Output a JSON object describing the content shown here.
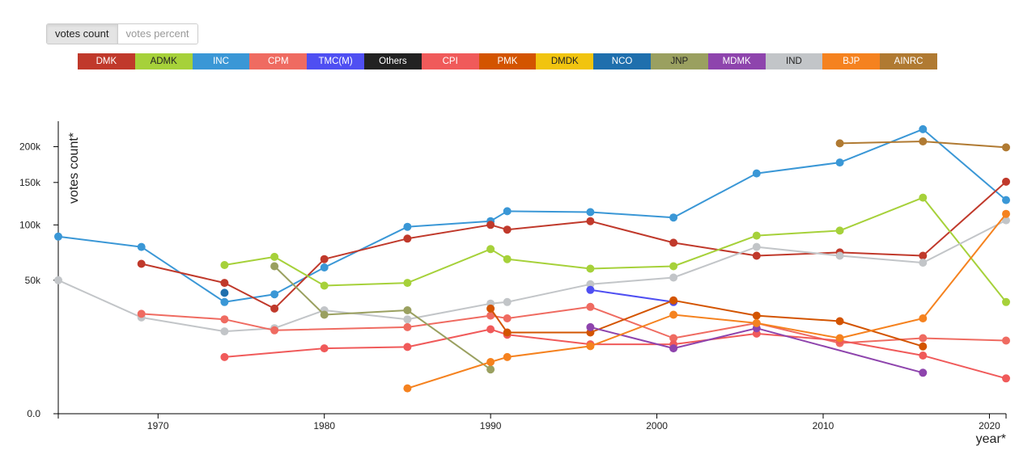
{
  "toggle": {
    "count_label": "votes count",
    "percent_label": "votes percent"
  },
  "legend": [
    {
      "name": "DMK",
      "color": "#c0392b"
    },
    {
      "name": "ADMK",
      "color": "#a6d13a"
    },
    {
      "name": "INC",
      "color": "#3a97d6"
    },
    {
      "name": "CPM",
      "color": "#ef6b61"
    },
    {
      "name": "TMC(M)",
      "color": "#4f4ff2"
    },
    {
      "name": "Others",
      "color": "#222222"
    },
    {
      "name": "CPI",
      "color": "#f05a5a"
    },
    {
      "name": "PMK",
      "color": "#d35400"
    },
    {
      "name": "DMDK",
      "color": "#f1c40f"
    },
    {
      "name": "NCO",
      "color": "#1f6fad"
    },
    {
      "name": "JNP",
      "color": "#9aa060"
    },
    {
      "name": "MDMK",
      "color": "#8e44ad"
    },
    {
      "name": "IND",
      "color": "#c2c5c8"
    },
    {
      "name": "BJP",
      "color": "#f5821f"
    },
    {
      "name": "AINRC",
      "color": "#b07a32"
    }
  ],
  "chart_data": {
    "type": "line",
    "xlabel": "year*",
    "ylabel": "votes count*",
    "xlim": [
      1964,
      2021
    ],
    "x_ticks": [
      {
        "value": 1970,
        "label": "1970"
      },
      {
        "value": 1980,
        "label": "1980"
      },
      {
        "value": 1990,
        "label": "1990"
      },
      {
        "value": 2000,
        "label": "2000"
      },
      {
        "value": 2010,
        "label": "2010"
      },
      {
        "value": 2020,
        "label": "2020"
      }
    ],
    "y_scale": "sqrt",
    "ylim": [
      0,
      240000
    ],
    "y_ticks": [
      {
        "value": 0,
        "label": "0.0"
      },
      {
        "value": 50000,
        "label": "50k"
      },
      {
        "value": 100000,
        "label": "100k"
      },
      {
        "value": 150000,
        "label": "150k"
      },
      {
        "value": 200000,
        "label": "200k"
      }
    ],
    "series": [
      {
        "name": "INC",
        "color": "#3a97d6",
        "points": [
          [
            1964,
            88000
          ],
          [
            1969,
            78000
          ],
          [
            1974,
            35000
          ],
          [
            1977,
            40000
          ],
          [
            1980,
            60000
          ],
          [
            1985,
            98000
          ],
          [
            1990,
            104000
          ],
          [
            1991,
            115000
          ],
          [
            1996,
            114000
          ],
          [
            2001,
            108000
          ],
          [
            2006,
            162000
          ],
          [
            2011,
            177000
          ],
          [
            2016,
            227000
          ],
          [
            2021,
            128000
          ]
        ]
      },
      {
        "name": "DMK",
        "color": "#c0392b",
        "points": [
          [
            1969,
            63000
          ],
          [
            1974,
            48000
          ],
          [
            1977,
            31000
          ],
          [
            1980,
            67000
          ],
          [
            1985,
            86000
          ],
          [
            1990,
            100000
          ],
          [
            1991,
            95000
          ],
          [
            1996,
            104000
          ],
          [
            2001,
            82000
          ],
          [
            2006,
            70000
          ],
          [
            2011,
            73000
          ],
          [
            2016,
            70000
          ],
          [
            2021,
            151000
          ]
        ]
      },
      {
        "name": "ADMK",
        "color": "#a6d13a",
        "points": [
          [
            1974,
            62000
          ],
          [
            1977,
            69000
          ],
          [
            1980,
            46000
          ],
          [
            1985,
            48000
          ],
          [
            1990,
            76000
          ],
          [
            1991,
            67000
          ],
          [
            1996,
            59000
          ],
          [
            2001,
            61000
          ],
          [
            2006,
            89000
          ],
          [
            2011,
            94000
          ],
          [
            2016,
            131000
          ],
          [
            2021,
            35000
          ]
        ]
      },
      {
        "name": "IND",
        "color": "#c2c5c8",
        "points": [
          [
            1964,
            50000
          ],
          [
            1969,
            26000
          ],
          [
            1974,
            19000
          ],
          [
            1977,
            20500
          ],
          [
            1980,
            30000
          ],
          [
            1985,
            25000
          ],
          [
            1990,
            34000
          ],
          [
            1991,
            35000
          ],
          [
            1996,
            47000
          ],
          [
            2001,
            52000
          ],
          [
            2006,
            78000
          ],
          [
            2011,
            70000
          ],
          [
            2016,
            64000
          ],
          [
            2021,
            105000
          ]
        ]
      },
      {
        "name": "CPM",
        "color": "#ef6b61",
        "points": [
          [
            1969,
            28000
          ],
          [
            1974,
            25000
          ],
          [
            1977,
            19500
          ],
          [
            1985,
            21000
          ],
          [
            1990,
            27000
          ],
          [
            1991,
            25500
          ],
          [
            1996,
            32000
          ],
          [
            2001,
            16000
          ],
          [
            2006,
            23000
          ],
          [
            2011,
            14000
          ],
          [
            2016,
            16000
          ],
          [
            2021,
            15000
          ]
        ]
      },
      {
        "name": "CPI",
        "color": "#f05a5a",
        "points": [
          [
            1974,
            9000
          ],
          [
            1980,
            12000
          ],
          [
            1985,
            12500
          ],
          [
            1990,
            20000
          ],
          [
            1991,
            17500
          ],
          [
            1996,
            13500
          ],
          [
            2001,
            13500
          ],
          [
            2006,
            18000
          ],
          [
            2011,
            15000
          ],
          [
            2016,
            9500
          ],
          [
            2021,
            3500
          ]
        ]
      },
      {
        "name": "JNP",
        "color": "#9aa060",
        "points": [
          [
            1977,
            61000
          ],
          [
            1980,
            27500
          ],
          [
            1985,
            30000
          ],
          [
            1990,
            5500
          ]
        ]
      },
      {
        "name": "NCO",
        "color": "#1f6fad",
        "points": [
          [
            1974,
            41000
          ]
        ]
      },
      {
        "name": "TMC(M)",
        "color": "#4f4ff2",
        "points": [
          [
            1996,
            43000
          ],
          [
            2001,
            35000
          ]
        ]
      },
      {
        "name": "PMK",
        "color": "#d35400",
        "points": [
          [
            1990,
            31000
          ],
          [
            1991,
            18500
          ],
          [
            1996,
            18500
          ],
          [
            2001,
            36000
          ],
          [
            2006,
            27000
          ],
          [
            2011,
            24000
          ],
          [
            2016,
            12700
          ]
        ]
      },
      {
        "name": "MDMK",
        "color": "#8e44ad",
        "points": [
          [
            1996,
            21000
          ],
          [
            2001,
            12000
          ],
          [
            2006,
            20500
          ],
          [
            2016,
            4700
          ]
        ]
      },
      {
        "name": "BJP",
        "color": "#f5821f",
        "points": [
          [
            1985,
            1800
          ],
          [
            1990,
            7500
          ],
          [
            1991,
            9000
          ],
          [
            1996,
            12800
          ],
          [
            2001,
            27500
          ],
          [
            2006,
            23000
          ],
          [
            2011,
            16000
          ],
          [
            2016,
            25500
          ],
          [
            2021,
            112000
          ]
        ]
      },
      {
        "name": "AINRC",
        "color": "#b07a32",
        "points": [
          [
            2011,
            205000
          ],
          [
            2016,
            208000
          ],
          [
            2021,
            199000
          ]
        ]
      }
    ]
  }
}
